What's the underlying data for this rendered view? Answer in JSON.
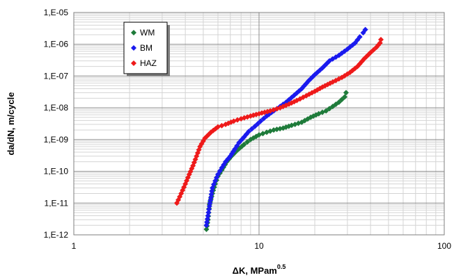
{
  "chart_data": {
    "type": "scatter",
    "x_scale": "log",
    "y_scale": "log",
    "xlim": [
      1,
      100
    ],
    "ylim": [
      1e-12,
      1e-05
    ],
    "xlabel": "ΔK, MPam",
    "xlabel_sup": "0.5",
    "ylabel": "da/dN, m/cycle",
    "x_ticks": [
      {
        "value": 1,
        "label": "1"
      },
      {
        "value": 10,
        "label": "10"
      },
      {
        "value": 100,
        "label": "100"
      }
    ],
    "y_ticks": [
      {
        "value": 1e-12,
        "label": "1,E-12"
      },
      {
        "value": 1e-11,
        "label": "1,E-11"
      },
      {
        "value": 1e-10,
        "label": "1,E-10"
      },
      {
        "value": 1e-09,
        "label": "1,E-09"
      },
      {
        "value": 1e-08,
        "label": "1,E-08"
      },
      {
        "value": 1e-07,
        "label": "1,E-07"
      },
      {
        "value": 1e-06,
        "label": "1,E-06"
      },
      {
        "value": 1e-05,
        "label": "1,E-05"
      }
    ],
    "grid": true,
    "legend_position": "top-left",
    "series": [
      {
        "name": "WM",
        "color": "#1e7b3a",
        "points": [
          [
            5.2,
            1.5e-12
          ],
          [
            5.3,
            3e-12
          ],
          [
            5.35,
            5e-12
          ],
          [
            5.4,
            9e-12
          ],
          [
            5.6,
            2e-11
          ],
          [
            5.8,
            4e-11
          ],
          [
            6.0,
            7e-11
          ],
          [
            6.3,
            1.1e-10
          ],
          [
            6.7,
            2e-10
          ],
          [
            7.1,
            3e-10
          ],
          [
            7.6,
            4.5e-10
          ],
          [
            8.3,
            7e-10
          ],
          [
            9.0,
            1e-09
          ],
          [
            10.0,
            1.4e-09
          ],
          [
            11.0,
            1.7e-09
          ],
          [
            12.0,
            2e-09
          ],
          [
            13.5,
            2.3e-09
          ],
          [
            15.0,
            2.8e-09
          ],
          [
            17.0,
            3.5e-09
          ],
          [
            19.0,
            5e-09
          ],
          [
            21.0,
            6.5e-09
          ],
          [
            23.0,
            8e-09
          ],
          [
            25.0,
            1.1e-08
          ],
          [
            27.0,
            1.5e-08
          ],
          [
            29.0,
            2.2e-08
          ],
          [
            29.5,
            3e-08
          ]
        ]
      },
      {
        "name": "BM",
        "color": "#1a1aee",
        "points": [
          [
            5.2,
            2e-12
          ],
          [
            5.3,
            4e-12
          ],
          [
            5.4,
            8e-12
          ],
          [
            5.5,
            1.5e-11
          ],
          [
            5.6,
            3e-11
          ],
          [
            5.8,
            5e-11
          ],
          [
            6.0,
            8e-11
          ],
          [
            6.3,
            1.3e-10
          ],
          [
            6.6,
            2e-10
          ],
          [
            7.0,
            3e-10
          ],
          [
            7.4,
            5e-10
          ],
          [
            7.8,
            8e-10
          ],
          [
            8.3,
            1.2e-09
          ],
          [
            8.8,
            1.8e-09
          ],
          [
            9.5,
            2.6e-09
          ],
          [
            10.2,
            3.8e-09
          ],
          [
            11.0,
            5.5e-09
          ],
          [
            12.0,
            8e-09
          ],
          [
            13.0,
            1.1e-08
          ],
          [
            14.0,
            1.5e-08
          ],
          [
            15.5,
            2.5e-08
          ],
          [
            17.0,
            4e-08
          ],
          [
            18.5,
            7e-08
          ],
          [
            20.0,
            1.1e-07
          ],
          [
            22.0,
            1.8e-07
          ],
          [
            24.0,
            3e-07
          ],
          [
            27.0,
            4.5e-07
          ],
          [
            30.0,
            7e-07
          ],
          [
            33.0,
            1.1e-06
          ],
          [
            35.0,
            1.7e-06
          ],
          [
            36.5,
            2.3e-06
          ],
          [
            37.5,
            2.9e-06
          ]
        ]
      },
      {
        "name": "HAZ",
        "color": "#ee1a1a",
        "points": [
          [
            3.6,
            1e-11
          ],
          [
            3.8,
            2e-11
          ],
          [
            4.0,
            4e-11
          ],
          [
            4.2,
            8e-11
          ],
          [
            4.4,
            1.5e-10
          ],
          [
            4.6,
            3e-10
          ],
          [
            4.8,
            6e-10
          ],
          [
            5.1,
            1.1e-09
          ],
          [
            5.5,
            1.7e-09
          ],
          [
            6.0,
            2.5e-09
          ],
          [
            6.6,
            3e-09
          ],
          [
            7.3,
            3.8e-09
          ],
          [
            8.0,
            4.5e-09
          ],
          [
            9.0,
            5.5e-09
          ],
          [
            10.0,
            6.5e-09
          ],
          [
            11.5,
            8e-09
          ],
          [
            13.0,
            1e-08
          ],
          [
            14.5,
            1.3e-08
          ],
          [
            16.0,
            1.7e-08
          ],
          [
            18.0,
            2.4e-08
          ],
          [
            20.0,
            3.3e-08
          ],
          [
            22.0,
            4.5e-08
          ],
          [
            25.0,
            6.5e-08
          ],
          [
            28.0,
            9e-08
          ],
          [
            31.0,
            1.3e-07
          ],
          [
            34.0,
            2e-07
          ],
          [
            37.0,
            3.5e-07
          ],
          [
            40.0,
            5.5e-07
          ],
          [
            43.0,
            8e-07
          ],
          [
            45.0,
            1.1e-06
          ],
          [
            45.5,
            1.4e-06
          ]
        ]
      }
    ]
  }
}
